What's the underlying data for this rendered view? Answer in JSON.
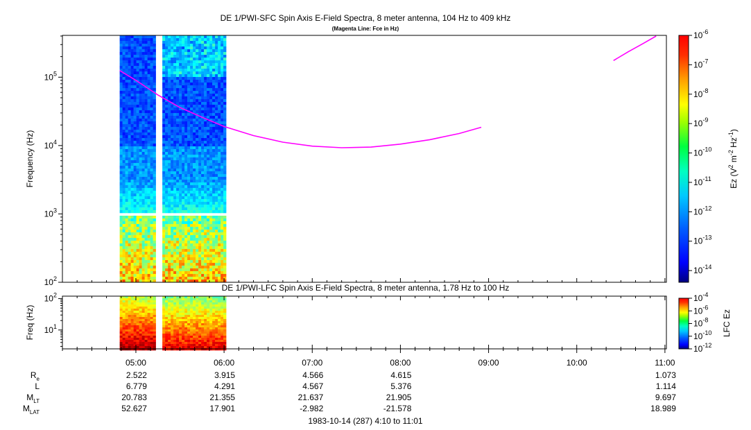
{
  "chart_data": [
    {
      "type": "heatmap",
      "title": "DE 1/PWI-SFC  Spin Axis E-Field Spectra, 8 meter antenna, 104 Hz to 409 kHz",
      "subtitle": "(Magenta Line: Fce in Hz)",
      "ylabel": "Frequency (Hz)",
      "y_scale": "log",
      "ylim": [
        100,
        409000
      ],
      "yticks": [
        "10^2",
        "10^3",
        "10^4",
        "10^5"
      ],
      "xlim": [
        "04:10",
        "11:01"
      ],
      "data_intervals": [
        [
          "04:49",
          "05:12"
        ],
        [
          "05:18",
          "06:00"
        ]
      ],
      "data_gap_band_hz": [
        900,
        1050
      ],
      "colorbar": {
        "label": "Ez (V^2 m^-2 Hz^-1)",
        "scale": "log",
        "range": [
          4e-15,
          1e-06
        ],
        "ticks": [
          "10^-6",
          "10^-7",
          "10^-8",
          "10^-9",
          "10^-10",
          "10^-11",
          "10^-12",
          "10^-13",
          "10^-14"
        ]
      },
      "series": [
        {
          "name": "Fce",
          "color": "#ff00ff",
          "segments": [
            [
              {
                "t": "04:49",
                "f": 125000
              },
              {
                "t": "05:00",
                "f": 90000
              },
              {
                "t": "05:15",
                "f": 55000
              },
              {
                "t": "05:30",
                "f": 36000
              },
              {
                "t": "05:45",
                "f": 26000
              },
              {
                "t": "06:00",
                "f": 19000
              },
              {
                "t": "06:20",
                "f": 14000
              },
              {
                "t": "06:40",
                "f": 11200
              },
              {
                "t": "07:00",
                "f": 9800
              },
              {
                "t": "07:20",
                "f": 9300
              },
              {
                "t": "07:40",
                "f": 9500
              },
              {
                "t": "08:00",
                "f": 10500
              },
              {
                "t": "08:20",
                "f": 12200
              },
              {
                "t": "08:40",
                "f": 15000
              },
              {
                "t": "08:55",
                "f": 18500
              }
            ],
            [
              {
                "t": "10:25",
                "f": 175000
              },
              {
                "t": "10:35",
                "f": 235000
              },
              {
                "t": "10:45",
                "f": 310000
              },
              {
                "t": "10:54",
                "f": 400000
              }
            ]
          ]
        }
      ]
    },
    {
      "type": "heatmap",
      "title": "DE 1/PWI-LFC  Spin Axis E-Field Spectra, 8 meter antenna, 1.78 Hz to 100 Hz",
      "ylabel": "Freq (Hz)",
      "y_scale": "log",
      "ylim": [
        2.5,
        120
      ],
      "yticks": [
        "10^1",
        "10^2"
      ],
      "xlim": [
        "04:10",
        "11:01"
      ],
      "data_intervals": [
        [
          "04:49",
          "05:12"
        ],
        [
          "05:18",
          "06:00"
        ]
      ],
      "colorbar": {
        "label": "LFC Ez",
        "scale": "log",
        "range": [
          1e-12,
          0.0001
        ],
        "ticks": [
          "10^-4",
          "10^-6",
          "10^-8",
          "10^-10",
          "10^-12"
        ]
      }
    }
  ],
  "x_axis": {
    "tick_labels": [
      "05:00",
      "06:00",
      "07:00",
      "08:00",
      "09:00",
      "10:00",
      "11:00"
    ]
  },
  "ephemeris": [
    {
      "label": "R",
      "sub": "e",
      "values": [
        "2.522",
        "3.915",
        "4.566",
        "4.615",
        "1.073"
      ]
    },
    {
      "label": "L",
      "sub": "",
      "values": [
        "6.779",
        "4.291",
        "4.567",
        "5.376",
        "1.114"
      ]
    },
    {
      "label": "M",
      "sub": "LT",
      "values": [
        "20.783",
        "21.355",
        "21.637",
        "21.905",
        "9.697"
      ]
    },
    {
      "label": "M",
      "sub": "LAT",
      "values": [
        "52.627",
        "17.901",
        "-2.982",
        "-21.578",
        "18.989"
      ]
    }
  ],
  "footer": "1983-10-14 (287) 4:10 to 11:01"
}
